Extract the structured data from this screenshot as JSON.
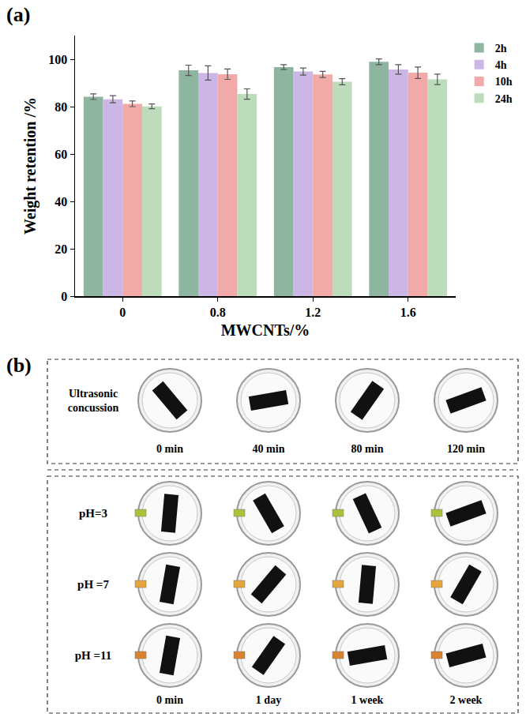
{
  "panel_labels": [
    "(a)",
    "(b)"
  ],
  "chart_data": {
    "type": "bar",
    "xlabel": "MWCNTs/%",
    "ylabel": "Weight retention /%",
    "categories": [
      "0",
      "0.8",
      "1.2",
      "1.6"
    ],
    "series": [
      {
        "name": "2h",
        "color": "#8db5a0",
        "values": [
          84.2,
          95.3,
          96.7,
          98.9
        ],
        "errors": [
          1.2,
          2.2,
          1.0,
          1.2
        ]
      },
      {
        "name": "4h",
        "color": "#cbb6e6",
        "values": [
          83.1,
          94.2,
          94.8,
          95.7
        ],
        "errors": [
          1.5,
          3.0,
          1.5,
          2.0
        ]
      },
      {
        "name": "10h",
        "color": "#f2aaa8",
        "values": [
          81.2,
          93.7,
          93.6,
          94.3
        ],
        "errors": [
          1.2,
          2.2,
          1.3,
          2.4
        ]
      },
      {
        "name": "24h",
        "color": "#bcdcbc",
        "values": [
          80.1,
          85.3,
          90.5,
          91.5
        ],
        "errors": [
          1.0,
          2.2,
          1.3,
          2.2
        ]
      }
    ],
    "ylim": [
      0,
      110
    ],
    "yticks": [
      0,
      20,
      40,
      60,
      80,
      100
    ],
    "grid": false,
    "legend": "top right"
  },
  "photos": {
    "ultrasonic": {
      "label": "Ultrasonic concussion",
      "times": [
        "0 min",
        "40 min",
        "80 min",
        "120 min"
      ]
    },
    "ph": {
      "rows": [
        "pH=3",
        "pH =7",
        "pH =11"
      ],
      "times": [
        "0 min",
        "1 day",
        "1 week",
        "2 week"
      ]
    }
  }
}
